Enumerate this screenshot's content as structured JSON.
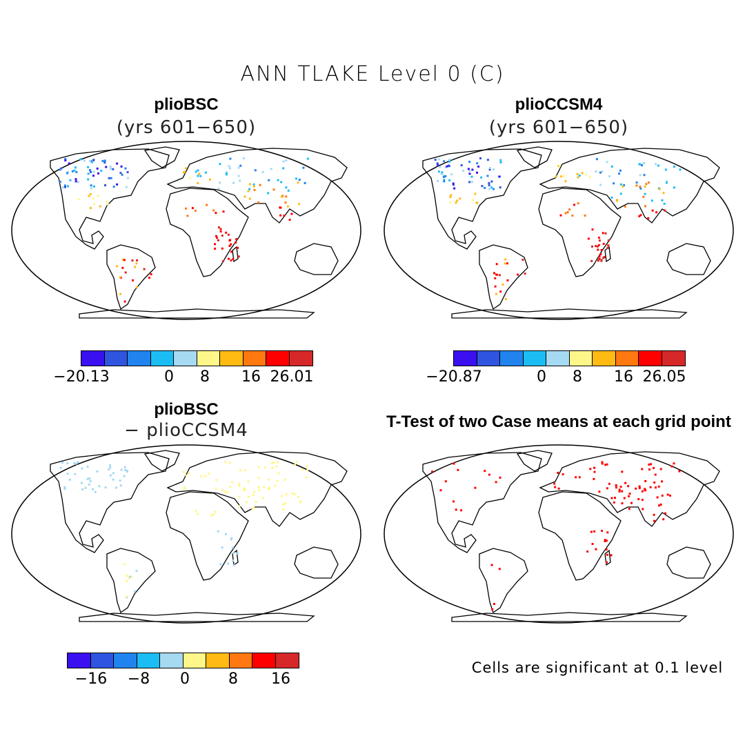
{
  "title": "ANN TLAKE Level 0 (C)",
  "panels": [
    {
      "title": "plioBSC",
      "subtitle": "(yrs 601−650)"
    },
    {
      "title": "plioCCSM4",
      "subtitle": "(yrs 601−650)"
    },
    {
      "title": "plioBSC",
      "subtitle": "− plioCCSM4"
    },
    {
      "title": "T-Test of two Case means at each grid point",
      "subtitle": ""
    }
  ],
  "colorbars": [
    {
      "labels": [
        "−20.13",
        "0",
        "8",
        "16",
        "26.01"
      ]
    },
    {
      "labels": [
        "−20.87",
        "0",
        "8",
        "16",
        "26.05"
      ]
    },
    {
      "labels": [
        "−16",
        "−8",
        "0",
        "8",
        "16"
      ]
    }
  ],
  "palette": [
    "#3a10f0",
    "#2f55e0",
    "#2184ee",
    "#1cbdf5",
    "#a6d9f2",
    "#fff68a",
    "#ffba14",
    "#ff7810",
    "#ff0000",
    "#d62828"
  ],
  "significance_color": "#ff0000",
  "note": "Cells are significant at 0.1 level"
}
